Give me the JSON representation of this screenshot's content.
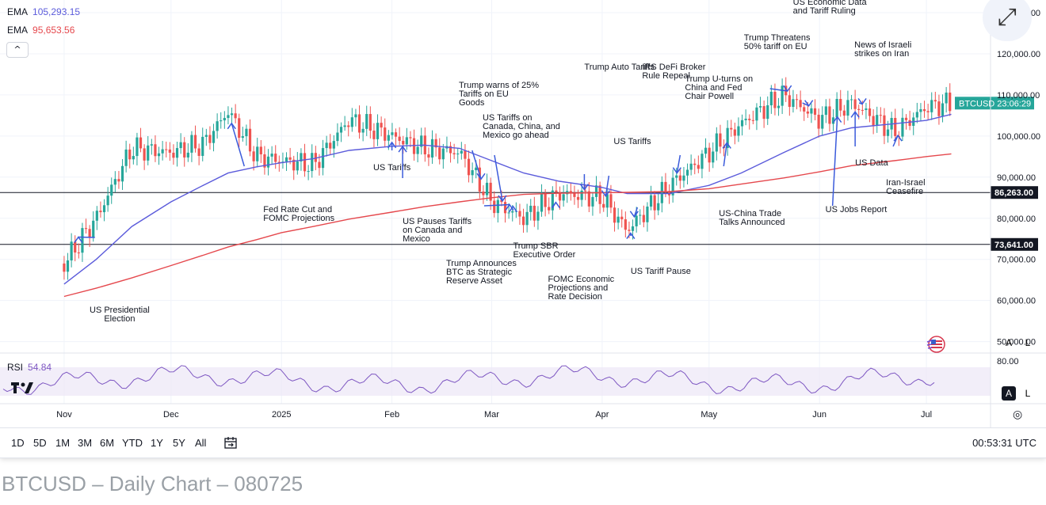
{
  "indicators": {
    "ema_fast": {
      "label": "EMA",
      "value": "105,293.15",
      "color": "#5b5bdb"
    },
    "ema_slow": {
      "label": "EMA",
      "value": "95,653.56",
      "color": "#e5484d"
    },
    "rsi": {
      "label": "RSI",
      "value": "54.84",
      "color": "#7e57c2"
    }
  },
  "toolbar": {
    "collapse_icon": "chevron-up-icon",
    "collapse_glyph": "^",
    "expand_icon": "expand-icon",
    "expand_glyph": "⤢"
  },
  "price_scale": {
    "ticks": [
      "50,000.00",
      "60,000.00",
      "70,000.00",
      "80,000.00",
      "90,000.00",
      "100,000.00",
      "110,000.00",
      "120,000.00",
      "130,000.00"
    ],
    "symbol_tag": "BTCUSD",
    "symbol_timer": "23:06:29",
    "levels": [
      "86,263.00",
      "73,641.00"
    ],
    "auto_label": "A",
    "log_label": "L"
  },
  "rsi_scale": {
    "tick": "80.00",
    "auto_label": "A",
    "log_label": "L"
  },
  "time_axis": [
    "Nov",
    "Dec",
    "2025",
    "Feb",
    "Mar",
    "Apr",
    "May",
    "Jun",
    "Jul"
  ],
  "ranges": [
    "1D",
    "5D",
    "1M",
    "3M",
    "6M",
    "YTD",
    "1Y",
    "5Y",
    "All"
  ],
  "clock": "00:53:31 UTC",
  "caption": "BTCUSD – Daily Chart – 080725",
  "chart_data": {
    "type": "line",
    "title": "BTCUSD – Daily Chart – 080725",
    "symbol": "BTCUSD",
    "x": [
      "2024-11-01",
      "2024-11-10",
      "2024-11-20",
      "2024-12-01",
      "2024-12-10",
      "2024-12-17",
      "2024-12-25",
      "2025-01-01",
      "2025-01-10",
      "2025-01-20",
      "2025-02-01",
      "2025-02-10",
      "2025-02-20",
      "2025-03-01",
      "2025-03-10",
      "2025-03-20",
      "2025-04-01",
      "2025-04-08",
      "2025-04-20",
      "2025-05-01",
      "2025-05-10",
      "2025-05-22",
      "2025-06-01",
      "2025-06-10",
      "2025-06-22",
      "2025-07-01",
      "2025-07-08"
    ],
    "series": [
      {
        "values": [
          69000,
          80000,
          97000,
          96000,
          98000,
          106000,
          95000,
          94000,
          93000,
          104000,
          100000,
          97000,
          96000,
          84000,
          80000,
          86000,
          85000,
          77000,
          88000,
          96000,
          103000,
          110000,
          104000,
          108000,
          101000,
          107000,
          108000
        ]
      },
      {
        "name": "EMA",
        "values": [
          64000,
          70000,
          78000,
          84000,
          88000,
          91000,
          92500,
          93500,
          94500,
          96500,
          97500,
          97800,
          97000,
          94000,
          91000,
          89000,
          87500,
          86000,
          86000,
          88000,
          91000,
          96000,
          100000,
          102000,
          103000,
          103800,
          105293
        ]
      },
      {
        "name": "EMA",
        "values": [
          61000,
          63000,
          65500,
          68500,
          71000,
          73000,
          74800,
          76500,
          78000,
          79800,
          81500,
          82800,
          84000,
          85000,
          85800,
          86100,
          86200,
          86300,
          86500,
          87200,
          88300,
          89800,
          91300,
          92800,
          94000,
          95000,
          95654
        ]
      }
    ],
    "ylim": [
      48000,
      130000
    ],
    "levels": [
      86263,
      73641
    ],
    "annotations": [
      {
        "text": "US Presidential Election",
        "date": "2024-11-05"
      },
      {
        "text": "Fed Rate Cut and FOMC Projections",
        "date": "2024-12-18"
      },
      {
        "text": "US Tariffs",
        "date": "2025-02-01"
      },
      {
        "text": "US Pauses Tariffs on Canada and Mexico",
        "date": "2025-02-04"
      },
      {
        "text": "Trump warns of 25% Tariffs on EU Goods",
        "date": "2025-02-26"
      },
      {
        "text": "US Tariffs on Canada, China, and Mexico go ahead",
        "date": "2025-03-04"
      },
      {
        "text": "Trump Announces BTC as Strategic Reserve Asset",
        "date": "2025-03-06"
      },
      {
        "text": "Trump SBR Executive Order",
        "date": "2025-03-07"
      },
      {
        "text": "FOMC Economic Projections and Rate Decision",
        "date": "2025-03-19"
      },
      {
        "text": "Trump Auto Tariffs",
        "date": "2025-03-27"
      },
      {
        "text": "US Tariffs",
        "date": "2025-04-02"
      },
      {
        "text": "IRS DeFi Broker Rule Repeal",
        "date": "2025-04-10"
      },
      {
        "text": "US Tariff Pause",
        "date": "2025-04-09"
      },
      {
        "text": "Trump U-turns on China and Fed Chair Powell",
        "date": "2025-04-22"
      },
      {
        "text": "US-China Trade Talks Announced",
        "date": "2025-05-06"
      },
      {
        "text": "Trump Threatens 50% tariff on EU",
        "date": "2025-05-23"
      },
      {
        "text": "US Economic Data and Tariff Ruling",
        "date": "2025-05-29"
      },
      {
        "text": "US Jobs Report",
        "date": "2025-06-06"
      },
      {
        "text": "News of Israeli strikes on Iran",
        "date": "2025-06-13"
      },
      {
        "text": "US Data",
        "date": "2025-06-11"
      },
      {
        "text": "Iran-Israel Ceasefire",
        "date": "2025-06-23"
      }
    ],
    "rsi": {
      "last": 54.84,
      "tick": 80
    }
  }
}
